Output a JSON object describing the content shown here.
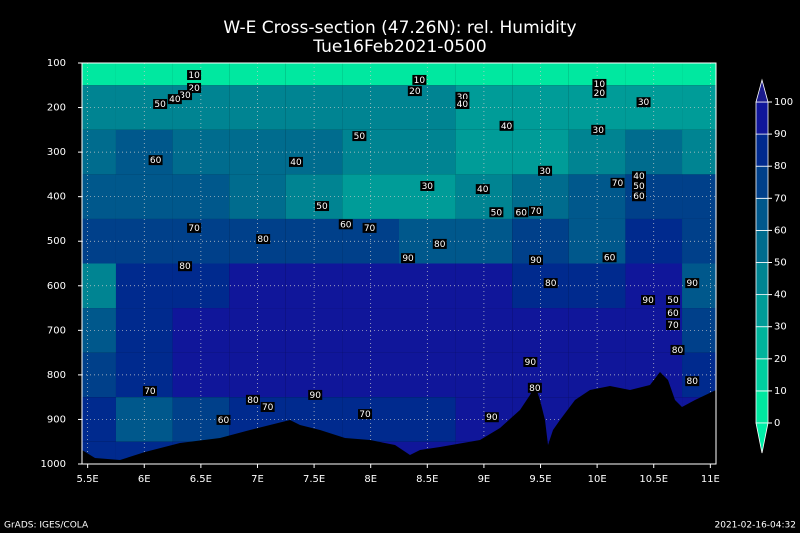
{
  "chart_data": {
    "type": "contour",
    "title": "W-E Cross-section (47.26N): rel. Humidity",
    "subtitle": "Tue16Feb2021-0500",
    "xlim": [
      5.45,
      11.05
    ],
    "ylim": [
      100,
      1000
    ],
    "y_reversed": true,
    "grid": true,
    "xticks": [
      {
        "value": 5.5,
        "label": "5.5E"
      },
      {
        "value": 6,
        "label": "6E"
      },
      {
        "value": 6.5,
        "label": "6.5E"
      },
      {
        "value": 7,
        "label": "7E"
      },
      {
        "value": 7.5,
        "label": "7.5E"
      },
      {
        "value": 8,
        "label": "8E"
      },
      {
        "value": 8.5,
        "label": "8.5E"
      },
      {
        "value": 9,
        "label": "9E"
      },
      {
        "value": 9.5,
        "label": "9.5E"
      },
      {
        "value": 10,
        "label": "10E"
      },
      {
        "value": 10.5,
        "label": "10.5E"
      },
      {
        "value": 11,
        "label": "11E"
      }
    ],
    "yticks": [
      100,
      200,
      300,
      400,
      500,
      600,
      700,
      800,
      900,
      1000
    ],
    "field": {
      "x": [
        5.5,
        6,
        6.5,
        7,
        7.5,
        8,
        8.5,
        9,
        9.5,
        10,
        10.5,
        11
      ],
      "y": [
        100,
        200,
        300,
        400,
        500,
        600,
        700,
        800,
        900,
        1000
      ],
      "values": [
        [
          5,
          5,
          5,
          5,
          5,
          5,
          5,
          5,
          5,
          5,
          5,
          5
        ],
        [
          45,
          45,
          45,
          45,
          45,
          45,
          40,
          35,
          35,
          30,
          30,
          30
        ],
        [
          55,
          60,
          55,
          50,
          50,
          45,
          40,
          35,
          30,
          40,
          50,
          45
        ],
        [
          60,
          60,
          60,
          55,
          45,
          35,
          35,
          40,
          55,
          65,
          75,
          75
        ],
        [
          70,
          70,
          75,
          75,
          70,
          70,
          65,
          65,
          70,
          65,
          80,
          75
        ],
        [
          40,
          80,
          85,
          90,
          92,
          92,
          92,
          90,
          85,
          85,
          90,
          60
        ],
        [
          60,
          80,
          90,
          92,
          92,
          95,
          95,
          92,
          90,
          90,
          92,
          70
        ],
        [
          75,
          85,
          90,
          92,
          92,
          92,
          92,
          90,
          90,
          92,
          92,
          85
        ],
        [
          80,
          60,
          70,
          85,
          85,
          80,
          85,
          90,
          92,
          95,
          95,
          95
        ],
        [
          85,
          80,
          85,
          90,
          90,
          90,
          90,
          92,
          92,
          95,
          95,
          95
        ]
      ]
    },
    "contour_labels": [
      {
        "x": 6.44,
        "y": 127,
        "value": 10
      },
      {
        "x": 6.44,
        "y": 156,
        "value": 20
      },
      {
        "x": 6.36,
        "y": 172,
        "value": 30
      },
      {
        "x": 6.27,
        "y": 181,
        "value": 40
      },
      {
        "x": 6.14,
        "y": 192,
        "value": 50
      },
      {
        "x": 8.43,
        "y": 138,
        "value": 10
      },
      {
        "x": 8.39,
        "y": 163,
        "value": 20
      },
      {
        "x": 8.81,
        "y": 176,
        "value": 30
      },
      {
        "x": 8.81,
        "y": 192,
        "value": 40
      },
      {
        "x": 10.02,
        "y": 147,
        "value": 10
      },
      {
        "x": 10.02,
        "y": 167,
        "value": 20
      },
      {
        "x": 10.41,
        "y": 188,
        "value": 30
      },
      {
        "x": 7.9,
        "y": 264,
        "value": 50
      },
      {
        "x": 9.2,
        "y": 241,
        "value": 40
      },
      {
        "x": 10.01,
        "y": 250,
        "value": 30
      },
      {
        "x": 6.1,
        "y": 318,
        "value": 60
      },
      {
        "x": 7.34,
        "y": 322,
        "value": 40
      },
      {
        "x": 9.54,
        "y": 342,
        "value": 30
      },
      {
        "x": 8.5,
        "y": 376,
        "value": 30
      },
      {
        "x": 8.99,
        "y": 383,
        "value": 40
      },
      {
        "x": 10.18,
        "y": 369,
        "value": 70
      },
      {
        "x": 10.37,
        "y": 354,
        "value": 40
      },
      {
        "x": 10.37,
        "y": 376,
        "value": 50
      },
      {
        "x": 10.37,
        "y": 399,
        "value": 60
      },
      {
        "x": 7.57,
        "y": 421,
        "value": 50
      },
      {
        "x": 9.11,
        "y": 435,
        "value": 50
      },
      {
        "x": 9.33,
        "y": 435,
        "value": 60
      },
      {
        "x": 9.46,
        "y": 432,
        "value": 70
      },
      {
        "x": 7.78,
        "y": 462,
        "value": 60
      },
      {
        "x": 7.99,
        "y": 470,
        "value": 70
      },
      {
        "x": 6.44,
        "y": 470,
        "value": 70
      },
      {
        "x": 7.05,
        "y": 495,
        "value": 80
      },
      {
        "x": 8.61,
        "y": 506,
        "value": 80
      },
      {
        "x": 8.33,
        "y": 538,
        "value": 90
      },
      {
        "x": 10.11,
        "y": 536,
        "value": 60
      },
      {
        "x": 9.46,
        "y": 542,
        "value": 90
      },
      {
        "x": 6.36,
        "y": 556,
        "value": 80
      },
      {
        "x": 9.59,
        "y": 594,
        "value": 80
      },
      {
        "x": 10.45,
        "y": 632,
        "value": 90
      },
      {
        "x": 10.67,
        "y": 632,
        "value": 50
      },
      {
        "x": 10.84,
        "y": 594,
        "value": 90
      },
      {
        "x": 10.67,
        "y": 661,
        "value": 60
      },
      {
        "x": 10.67,
        "y": 688,
        "value": 70
      },
      {
        "x": 10.71,
        "y": 744,
        "value": 80
      },
      {
        "x": 9.41,
        "y": 771,
        "value": 90
      },
      {
        "x": 10.84,
        "y": 814,
        "value": 80
      },
      {
        "x": 9.45,
        "y": 829,
        "value": 80
      },
      {
        "x": 6.05,
        "y": 836,
        "value": 70
      },
      {
        "x": 7.51,
        "y": 845,
        "value": 90
      },
      {
        "x": 6.96,
        "y": 856,
        "value": 80
      },
      {
        "x": 7.09,
        "y": 872,
        "value": 70
      },
      {
        "x": 6.7,
        "y": 901,
        "value": 60
      },
      {
        "x": 7.95,
        "y": 888,
        "value": 70
      },
      {
        "x": 9.07,
        "y": 895,
        "value": 90
      }
    ],
    "colorbar": {
      "levels": [
        0,
        10,
        20,
        30,
        40,
        50,
        60,
        70,
        80,
        90,
        100
      ],
      "colors": [
        "#00e8a0",
        "#00cfa0",
        "#00b49c",
        "#009c98",
        "#008492",
        "#006c8e",
        "#00588c",
        "#00408a",
        "#002a8e",
        "#10169a"
      ],
      "under_color": "#00f0a8",
      "over_color": "#1a1a8c"
    },
    "credit": "GrADS: IGES/COLA",
    "timestamp": "2021-02-16-04:32"
  }
}
